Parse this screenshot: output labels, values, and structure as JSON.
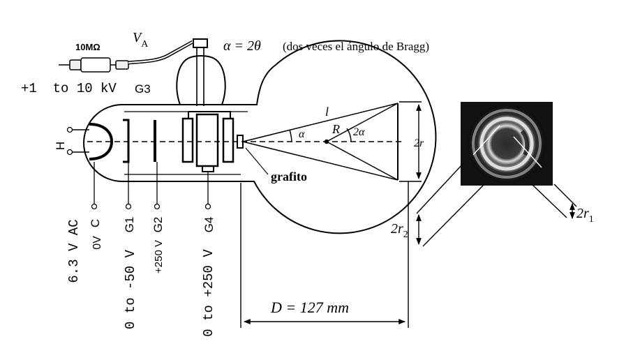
{
  "title_formula": "α = 2θ",
  "title_note": "(dos veces el ángulo de Bragg)",
  "resistor_label": "10MΩ",
  "va_label": "V",
  "va_sub": "A",
  "supply_label": "+1  to 10 kV",
  "g3_label": "G3",
  "heater_label": "H",
  "heater_voltage": "6.3 V AC",
  "electrodes": {
    "c": {
      "name": "C",
      "voltage": "0V"
    },
    "g1": {
      "name": "G1",
      "voltage": "0 to -50 V"
    },
    "g2": {
      "name": "G2",
      "voltage": "+250 V"
    },
    "g4": {
      "name": "G4",
      "voltage": "0 to +250 V"
    }
  },
  "graphite_label": "grafito",
  "geometry_labels": {
    "l": "l",
    "R": "R",
    "alpha": "α",
    "two_alpha": "2α",
    "two_r": "2r"
  },
  "distance_label": "D = 127 mm",
  "ring_labels": {
    "r1": "2r",
    "r1_sub": "1",
    "r2": "2r",
    "r2_sub": "2"
  },
  "colors": {
    "ink": "#000000",
    "screen_bg": "#111111",
    "ring": "#e6e6e6"
  }
}
